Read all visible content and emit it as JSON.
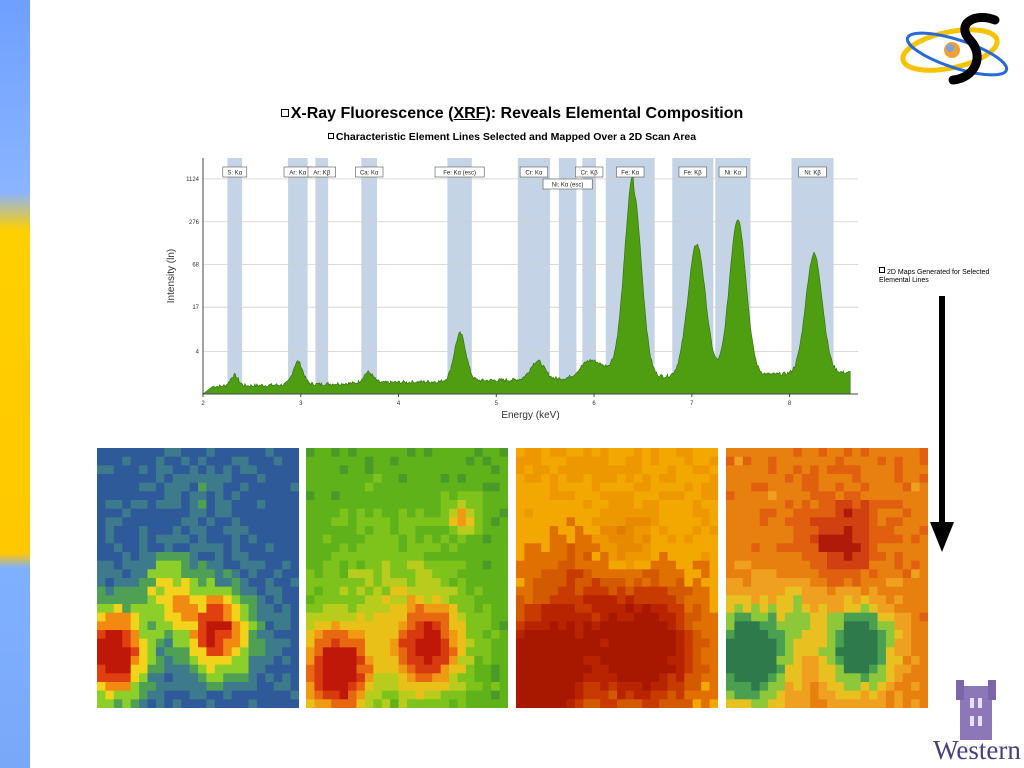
{
  "slide": {
    "title_pre": "X-Ray Fluorescence (",
    "title_abbr": "XRF",
    "title_post": "): Reveals Elemental Composition",
    "subtitle": "Characteristic Element Lines Selected and Mapped Over a 2D Scan Area",
    "side_note": "2D Maps Generated for Selected Elemental Lines",
    "university": "Western"
  },
  "colors": {
    "band": "#c5d3e6",
    "spectrum_fill": "#4f9e12",
    "spectrum_line": "#2f6a0a",
    "sidebar_blue": "#7aa8f8",
    "sidebar_yellow": "#ffc800"
  },
  "icons": [
    "atom-orbit-logo",
    "down-arrow-icon",
    "university-tower-logo"
  ],
  "chart_data": {
    "type": "area",
    "xlabel": "Energy (keV)",
    "ylabel": "Intensity (ln)",
    "xlim": [
      2,
      8.7
    ],
    "x_ticks": [
      2,
      3,
      4,
      5,
      6,
      7,
      8
    ],
    "y_ticks": [
      {
        "label": "4",
        "ln": 1.386
      },
      {
        "label": "17",
        "ln": 2.833
      },
      {
        "label": "68",
        "ln": 4.22
      },
      {
        "label": "276",
        "ln": 5.62
      },
      {
        "label": "1124",
        "ln": 7.02
      }
    ],
    "ylim_ln": [
      0,
      7.7
    ],
    "grid": true,
    "lines": [
      {
        "label": "S: Kα",
        "x1": 2.25,
        "x2": 2.4,
        "row": 0
      },
      {
        "label": "Ar: Kα",
        "x1": 2.87,
        "x2": 3.07,
        "row": 0
      },
      {
        "label": "Ar: Kβ",
        "x1": 3.15,
        "x2": 3.28,
        "row": 0
      },
      {
        "label": "Ca: Kα",
        "x1": 3.62,
        "x2": 3.78,
        "row": 0
      },
      {
        "label": "Fe: Kα (esc)",
        "x1": 4.5,
        "x2": 4.75,
        "row": 0
      },
      {
        "label": "Cr: Kα",
        "x1": 5.22,
        "x2": 5.55,
        "row": 0
      },
      {
        "label": "Ni: Kα (esc)",
        "x1": 5.64,
        "x2": 5.82,
        "row": 1
      },
      {
        "label": "Cr: Kβ",
        "x1": 5.88,
        "x2": 6.02,
        "row": 0
      },
      {
        "label": "Fe: Kα",
        "x1": 6.12,
        "x2": 6.62,
        "row": 0
      },
      {
        "label": "Fe: Kβ",
        "x1": 6.8,
        "x2": 7.22,
        "row": 0
      },
      {
        "label": "Ni: Kα",
        "x1": 7.24,
        "x2": 7.6,
        "row": 0
      },
      {
        "label": "Ni: Kβ",
        "x1": 8.02,
        "x2": 8.45,
        "row": 0
      }
    ],
    "peaks_ln": {
      "background_start": 0.25,
      "background_end": 0.7,
      "peaks": [
        {
          "center": 2.32,
          "width": 0.04,
          "height": 0.35
        },
        {
          "center": 2.97,
          "width": 0.05,
          "height": 0.75
        },
        {
          "center": 3.69,
          "width": 0.05,
          "height": 0.35
        },
        {
          "center": 4.63,
          "width": 0.06,
          "height": 1.55
        },
        {
          "center": 5.42,
          "width": 0.07,
          "height": 0.6
        },
        {
          "center": 5.95,
          "width": 0.1,
          "height": 0.45
        },
        {
          "center": 6.4,
          "width": 0.085,
          "height": 6.1
        },
        {
          "center": 7.05,
          "width": 0.09,
          "height": 4.3
        },
        {
          "center": 7.47,
          "width": 0.085,
          "height": 5.1
        },
        {
          "center": 8.25,
          "width": 0.085,
          "height": 3.9
        }
      ]
    }
  },
  "maps": [
    {
      "name": "map-1",
      "palette": [
        "#1f3f8a",
        "#2e5a9a",
        "#3c7a8c",
        "#4fa055",
        "#8ccf2a",
        "#f2d21a",
        "#f28a12",
        "#e04010",
        "#c01808"
      ],
      "base": 0.18,
      "blobs": [
        [
          0.08,
          0.79,
          0.12,
          0.9
        ],
        [
          0.6,
          0.71,
          0.12,
          0.75
        ],
        [
          0.5,
          0.17,
          0.1,
          0.1
        ],
        [
          0.35,
          0.55,
          0.1,
          0.4
        ]
      ]
    },
    {
      "name": "map-2",
      "palette": [
        "#4a9a2a",
        "#5fb21a",
        "#7ec21c",
        "#b8cc1e",
        "#e8c018",
        "#f09a14",
        "#e86812",
        "#d83a10",
        "#c01808"
      ],
      "base": 0.15,
      "blobs": [
        [
          0.15,
          0.86,
          0.12,
          0.95
        ],
        [
          0.61,
          0.77,
          0.12,
          0.8
        ],
        [
          0.78,
          0.27,
          0.05,
          0.4
        ],
        [
          0.4,
          0.57,
          0.2,
          0.2
        ]
      ]
    },
    {
      "name": "map-3",
      "palette": [
        "#e27c00",
        "#e88a00",
        "#ee9800",
        "#f2a800",
        "#e07000",
        "#d45a00",
        "#c83a00",
        "#b82400",
        "#a81800"
      ],
      "base": 0.35,
      "blobs": [
        [
          0.12,
          0.88,
          0.14,
          0.95
        ],
        [
          0.65,
          0.78,
          0.18,
          0.7
        ],
        [
          0.53,
          0.37,
          0.1,
          -0.3
        ],
        [
          0.3,
          0.6,
          0.2,
          0.3
        ]
      ]
    },
    {
      "name": "map-4",
      "palette": [
        "#2e7a4a",
        "#4aa050",
        "#8cc83a",
        "#e8c020",
        "#f0a020",
        "#e88010",
        "#e06010",
        "#d04010",
        "#b01a08"
      ],
      "base": 0.62,
      "blobs": [
        [
          0.12,
          0.8,
          0.14,
          -0.75
        ],
        [
          0.66,
          0.76,
          0.12,
          -0.7
        ],
        [
          0.58,
          0.36,
          0.12,
          0.32
        ],
        [
          0.38,
          0.62,
          0.08,
          -0.2
        ]
      ]
    }
  ]
}
